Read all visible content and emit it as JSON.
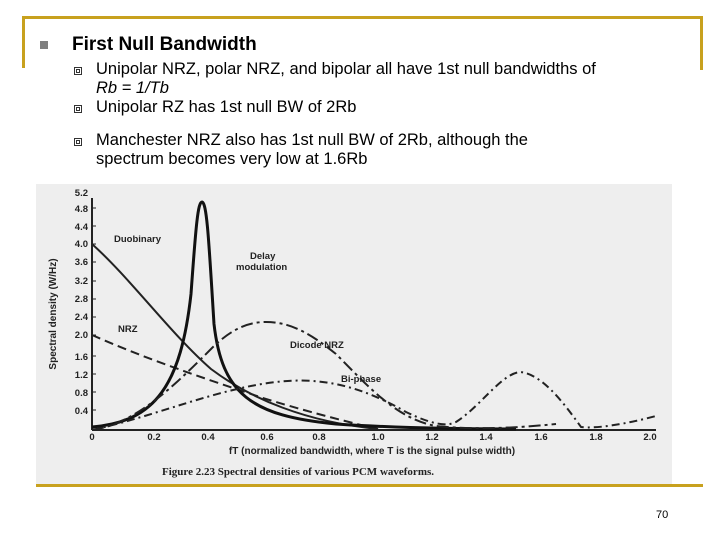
{
  "heading": "First Null Bandwidth",
  "bullets": [
    {
      "line1": "Unipolar NRZ, polar NRZ, and bipolar all have 1st null bandwidths of",
      "line2": "Rb = 1/Tb"
    },
    {
      "line1": "Unipolar RZ has 1st null BW of 2Rb"
    },
    {
      "line1": "Manchester NRZ also has 1st null BW of 2Rb, although the",
      "line2": "spectrum becomes very low at 1.6Rb"
    }
  ],
  "figure": {
    "ylabel": "Spectral density (W/Hz)",
    "xlabel": "fT (normalized bandwidth, where T is the signal pulse width)",
    "caption": "Figure 2.23   Spectral densities of various PCM waveforms.",
    "yticks": [
      "0.4",
      "0.8",
      "1.2",
      "1.6",
      "2.0",
      "2.4",
      "2.8",
      "3.2",
      "3.6",
      "4.0",
      "4.4",
      "4.8",
      "5.2"
    ],
    "xticks": [
      "0",
      "0.2",
      "0.4",
      "0.6",
      "0.8",
      "1.0",
      "1.2",
      "1.4",
      "1.6",
      "1.8",
      "2.0"
    ],
    "labels": {
      "duobinary": "Duobinary",
      "delay1": "Delay",
      "delay2": "modulation",
      "nrz": "NRZ",
      "dicode": "Dicode NRZ",
      "biphase": "Bi-phase"
    }
  },
  "page_number": "70"
}
